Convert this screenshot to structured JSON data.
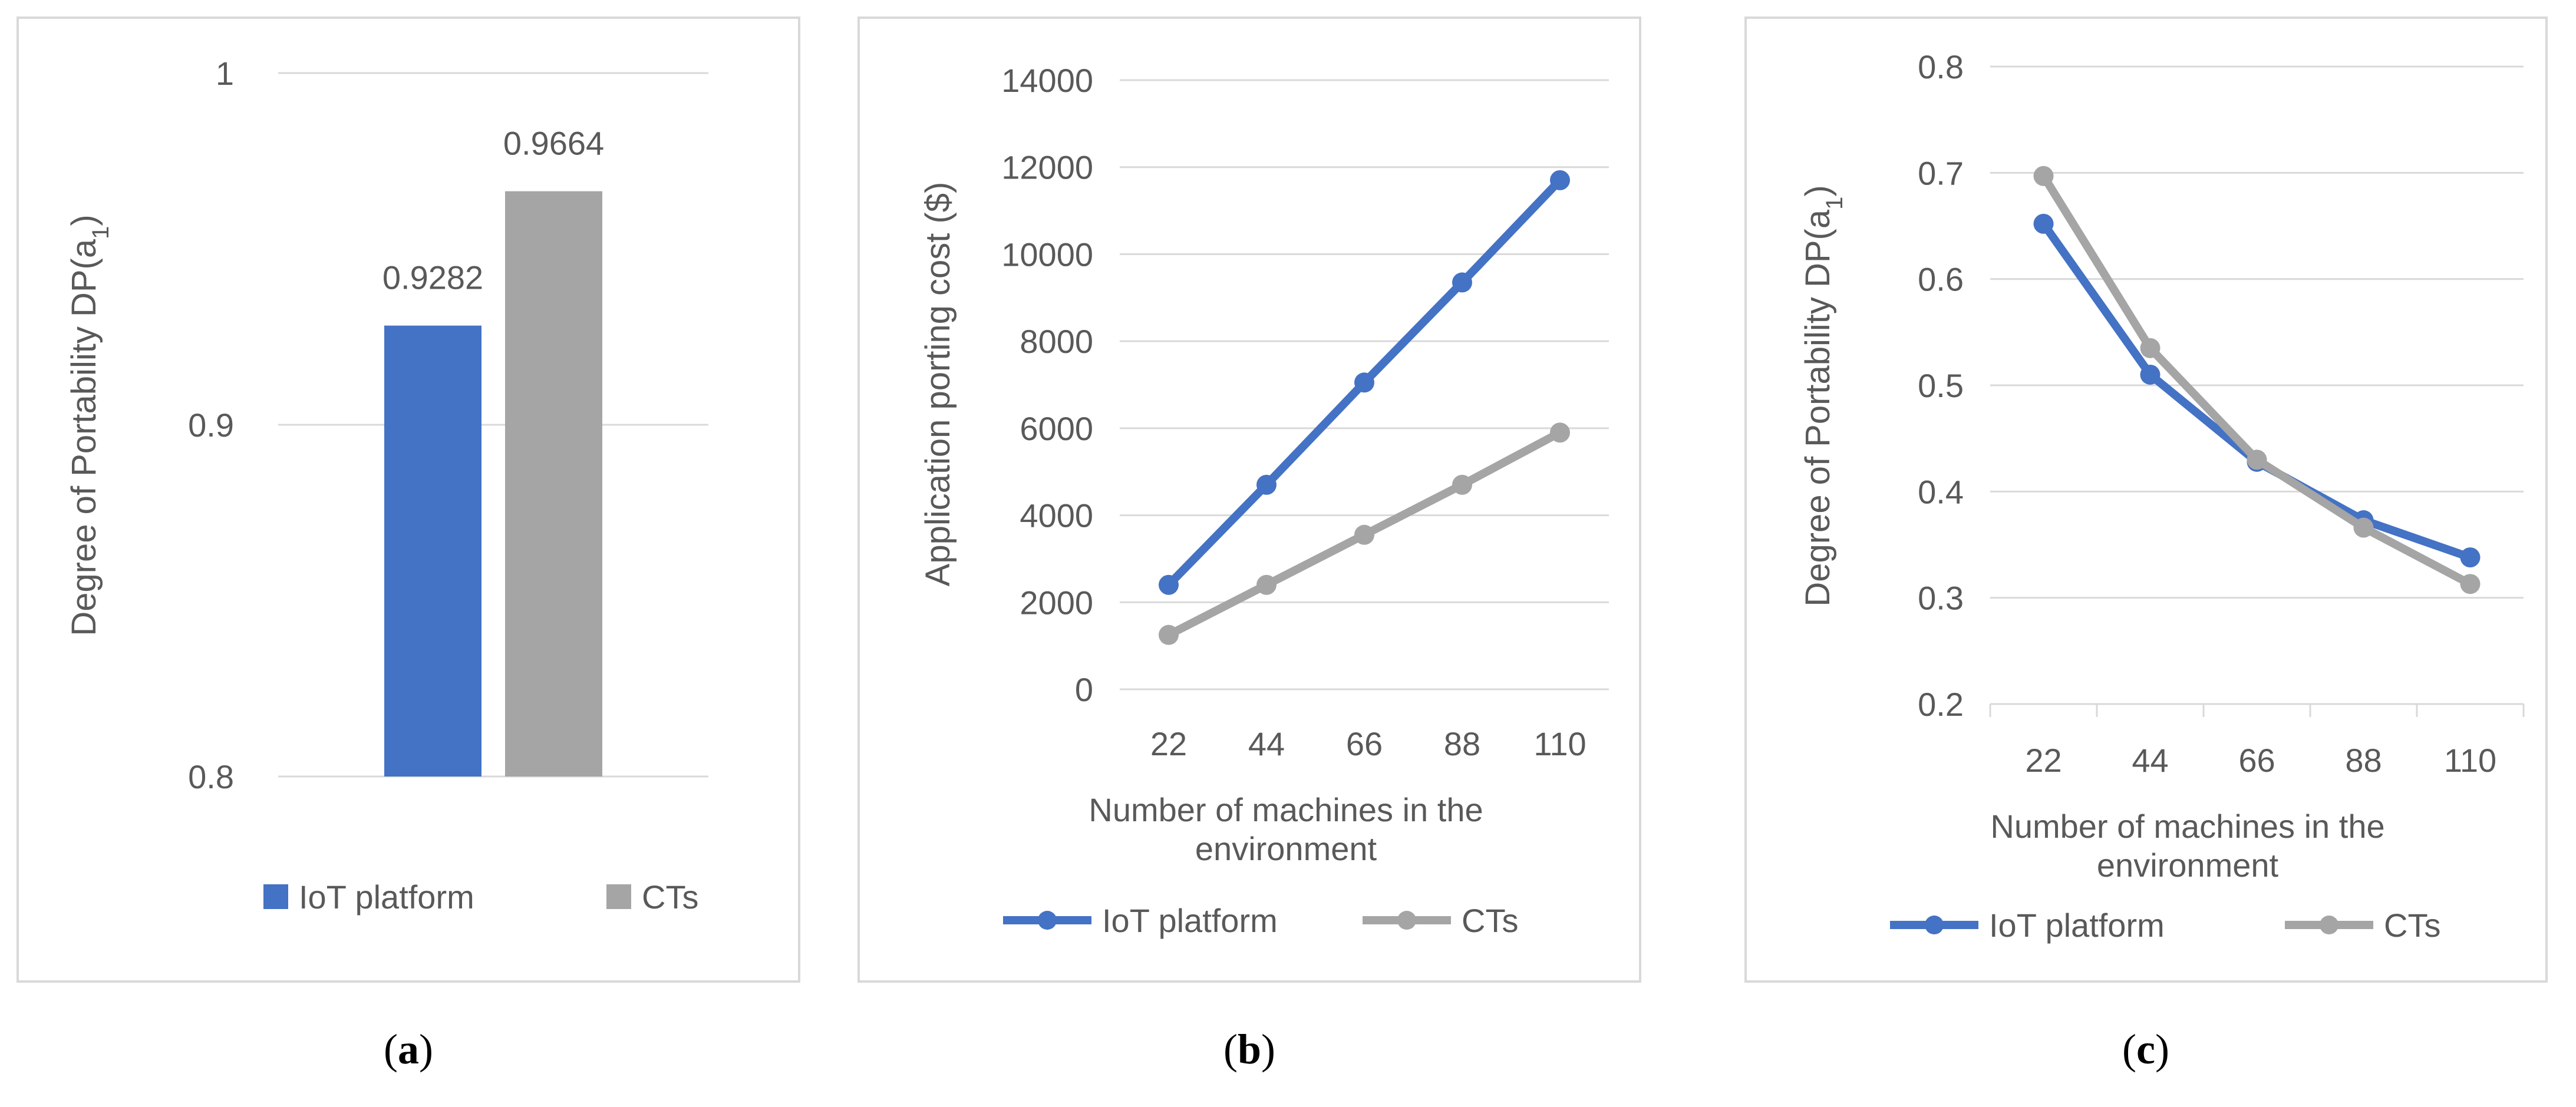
{
  "captions": {
    "a": "a",
    "b": "b",
    "c": "c"
  },
  "chart_data": [
    {
      "type": "bar",
      "categories": [
        ""
      ],
      "series": [
        {
          "name": "IoT platform",
          "values": [
            0.9282
          ],
          "color": "#4472C4"
        },
        {
          "name": "CTs",
          "values": [
            0.9664
          ],
          "color": "#A5A5A5"
        }
      ],
      "data_labels": [
        "0.9282",
        "0.9664"
      ],
      "ylabel": "Degree of Portability DP(a",
      "ylabel_sub": "1",
      "ylabel_close": ")",
      "ylim": [
        0.8,
        1
      ],
      "yticks": [
        0.8,
        0.9,
        1
      ],
      "ytick_labels": [
        "0.8",
        "0.9",
        "1"
      ],
      "grid": true,
      "legend": "bottom"
    },
    {
      "type": "line",
      "x": [
        22,
        44,
        66,
        88,
        110
      ],
      "xtick_labels": [
        "22",
        "44",
        "66",
        "88",
        "110"
      ],
      "series": [
        {
          "name": "IoT platform",
          "values": [
            2400,
            4700,
            7050,
            9350,
            11700
          ],
          "color": "#4472C4"
        },
        {
          "name": "CTs",
          "values": [
            1250,
            2400,
            3550,
            4700,
            5900
          ],
          "color": "#A5A5A5"
        }
      ],
      "xlabel": [
        "Number of machines in the",
        "environment"
      ],
      "ylabel": "Application porting cost ($)",
      "ylim": [
        0,
        14000
      ],
      "yticks": [
        0,
        2000,
        4000,
        6000,
        8000,
        10000,
        12000,
        14000
      ],
      "ytick_labels": [
        "0",
        "2000",
        "4000",
        "6000",
        "8000",
        "10000",
        "12000",
        "14000"
      ],
      "grid": true,
      "legend": "bottom"
    },
    {
      "type": "line",
      "x": [
        22,
        44,
        66,
        88,
        110
      ],
      "xtick_labels": [
        "22",
        "44",
        "66",
        "88",
        "110"
      ],
      "series": [
        {
          "name": "IoT platform",
          "values": [
            0.652,
            0.51,
            0.428,
            0.373,
            0.338
          ],
          "color": "#4472C4"
        },
        {
          "name": "CTs",
          "values": [
            0.697,
            0.535,
            0.43,
            0.366,
            0.313
          ],
          "color": "#A5A5A5"
        }
      ],
      "xlabel": [
        "Number of machines in the",
        "environment"
      ],
      "ylabel": "Degree of Portability DP(a",
      "ylabel_sub": "1",
      "ylabel_close": ")",
      "ylim": [
        0.2,
        0.8
      ],
      "yticks": [
        0.2,
        0.3,
        0.4,
        0.5,
        0.6,
        0.7,
        0.8
      ],
      "ytick_labels": [
        "0.2",
        "0.3",
        "0.4",
        "0.5",
        "0.6",
        "0.7",
        "0.8"
      ],
      "grid": true,
      "legend": "bottom"
    }
  ]
}
